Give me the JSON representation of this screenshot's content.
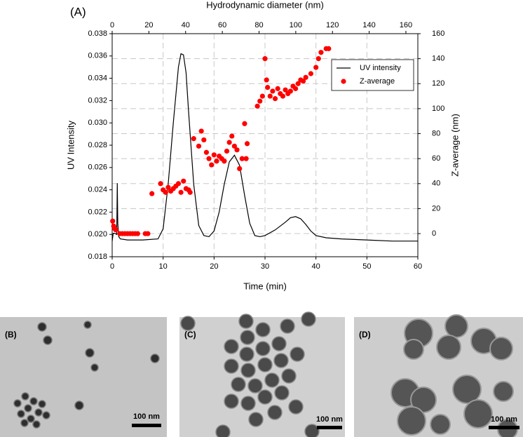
{
  "chart_data": {
    "type": "line",
    "panel_label": "(A)",
    "xlabel": "Time (min)",
    "x2label": "Hydrodynamic diameter (nm)",
    "ylabel": "UV Intensity",
    "y2label": "Z-average (nm)",
    "xlim": [
      0,
      60
    ],
    "xticks": [
      0,
      10,
      20,
      30,
      40,
      50,
      60
    ],
    "x2lim": [
      0,
      166.5
    ],
    "x2ticks": [
      0,
      20,
      40,
      60,
      80,
      100,
      120,
      140,
      160
    ],
    "ylim": [
      0.018,
      0.038
    ],
    "yticks": [
      0.018,
      {
        "value": 0.02,
        "label": "0.020"
      },
      0.022,
      0.024,
      0.026,
      0.028,
      {
        "value": 0.03,
        "label": "0.030"
      },
      0.032,
      0.034,
      0.036,
      0.038
    ],
    "y2lim": [
      -18.5,
      160
    ],
    "y2ticks": [
      0,
      20,
      40,
      60,
      80,
      100,
      120,
      140,
      160
    ],
    "grid": true,
    "legend": "upper right",
    "series": [
      {
        "name": "UV intensity",
        "type": "line",
        "color": "#000000",
        "x": [
          0,
          0.2,
          0.5,
          0.9,
          1.0,
          1.1,
          1.3,
          1.6,
          3,
          6,
          9,
          10,
          11,
          12,
          13,
          13.5,
          14,
          14.5,
          15,
          16,
          17,
          18,
          19,
          20,
          21,
          22,
          23,
          24,
          25,
          26,
          27,
          28,
          29,
          30,
          32,
          34,
          35,
          36,
          37,
          38,
          39,
          40,
          42,
          45,
          50,
          55,
          60
        ],
        "values": [
          0.0194,
          0.0201,
          0.0201,
          0.02,
          0.0246,
          0.021,
          0.0198,
          0.0196,
          0.0195,
          0.0195,
          0.0196,
          0.0205,
          0.0245,
          0.03,
          0.035,
          0.0362,
          0.0361,
          0.0345,
          0.031,
          0.0245,
          0.0208,
          0.0199,
          0.0198,
          0.0203,
          0.022,
          0.0245,
          0.0265,
          0.0271,
          0.0262,
          0.0235,
          0.021,
          0.0199,
          0.0198,
          0.0199,
          0.0204,
          0.0211,
          0.0215,
          0.0216,
          0.0214,
          0.0209,
          0.0203,
          0.0199,
          0.0197,
          0.0196,
          0.0195,
          0.0194,
          0.0194
        ]
      },
      {
        "name": "Z-average",
        "type": "scatter",
        "color": "#ff0000",
        "axis": "y2",
        "x": [
          0.1,
          0.3,
          0.5,
          0.7,
          1.5,
          2,
          2.5,
          3,
          3.5,
          4,
          4.5,
          5,
          6.5,
          7,
          7.8,
          9.5,
          10,
          10.5,
          11,
          11.5,
          12,
          12.5,
          13,
          13.5,
          14,
          14.5,
          15,
          15.3,
          16,
          17,
          17.5,
          18,
          18.5,
          19,
          19.5,
          20,
          20.5,
          21,
          21.5,
          22,
          22.5,
          23,
          23.5,
          24,
          24.5,
          25,
          25.5,
          26,
          26.3,
          26.5,
          28.5,
          29,
          29.5,
          30,
          30.3,
          30.5,
          31,
          31.5,
          32,
          32.5,
          33,
          33.5,
          34,
          34.5,
          35,
          35.5,
          36,
          36.5,
          37,
          37.5,
          38,
          39,
          40,
          40.5,
          41,
          42,
          42.5
        ],
        "values": [
          10,
          6,
          4,
          3,
          0,
          0,
          0,
          0,
          0,
          0,
          0,
          0,
          0,
          0,
          32,
          40,
          35,
          33,
          37,
          34,
          36,
          38,
          40,
          33,
          42,
          36,
          35,
          33,
          76,
          70,
          82,
          75,
          65,
          60,
          55,
          63,
          58,
          62,
          60,
          58,
          66,
          73,
          78,
          70,
          67,
          52,
          60,
          88,
          60,
          72,
          102,
          106,
          110,
          140,
          123,
          117,
          110,
          114,
          108,
          116,
          112,
          110,
          115,
          112,
          114,
          118,
          116,
          120,
          123,
          122,
          125,
          128,
          133,
          140,
          145,
          148,
          148
        ]
      }
    ]
  },
  "images": [
    {
      "label": "(B)",
      "scale_bar": "100 nm"
    },
    {
      "label": "(C)",
      "scale_bar": "100 nm"
    },
    {
      "label": "(D)",
      "scale_bar": "100 nm"
    }
  ]
}
